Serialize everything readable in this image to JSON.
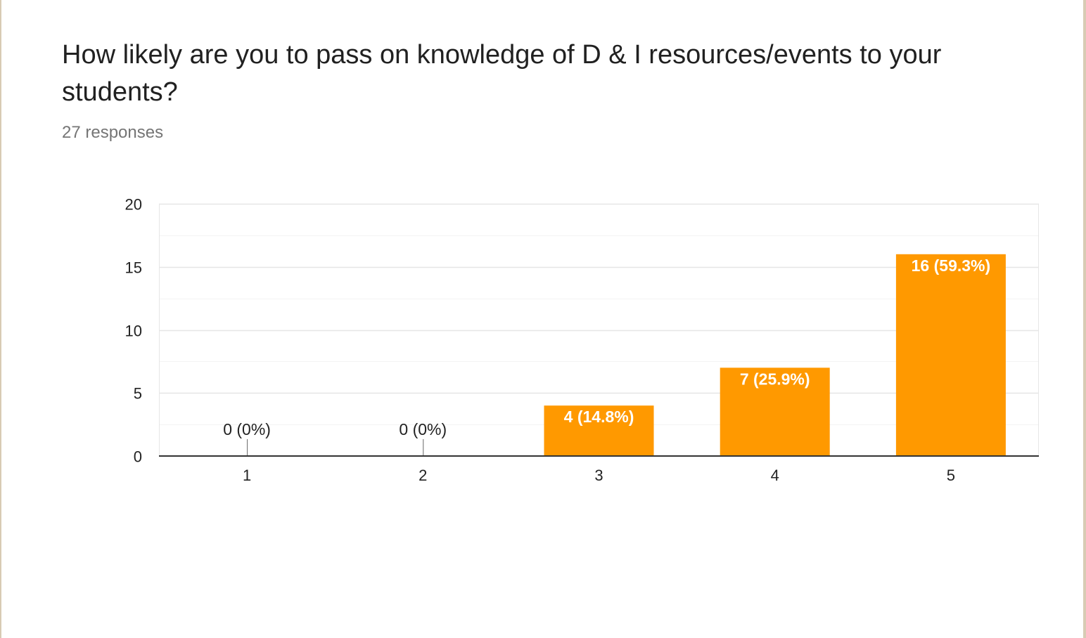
{
  "question": {
    "title": "How likely are you to pass on knowledge of D & I resources/events to your students?",
    "response_count": "27 responses"
  },
  "colors": {
    "bar": "#ff9900",
    "axis": "#333333",
    "gridline": "#e6e6e6",
    "minor_gridline": "#f4f4f4",
    "label_dark": "#222222",
    "label_light": "#ffffff",
    "tick_text": "#222222"
  },
  "chart_data": {
    "type": "bar",
    "title": "",
    "xlabel": "",
    "ylabel": "",
    "categories": [
      "1",
      "2",
      "3",
      "4",
      "5"
    ],
    "values": [
      0,
      0,
      4,
      7,
      16
    ],
    "data_labels": [
      "0 (0%)",
      "0 (0%)",
      "4 (14.8%)",
      "7 (25.9%)",
      "16 (59.3%)"
    ],
    "ylim": [
      0,
      20
    ],
    "yticks": [
      0,
      5,
      10,
      15,
      20
    ],
    "ytick_labels": [
      "0",
      "5",
      "10",
      "15",
      "20"
    ],
    "grid": true,
    "legend": "none"
  }
}
